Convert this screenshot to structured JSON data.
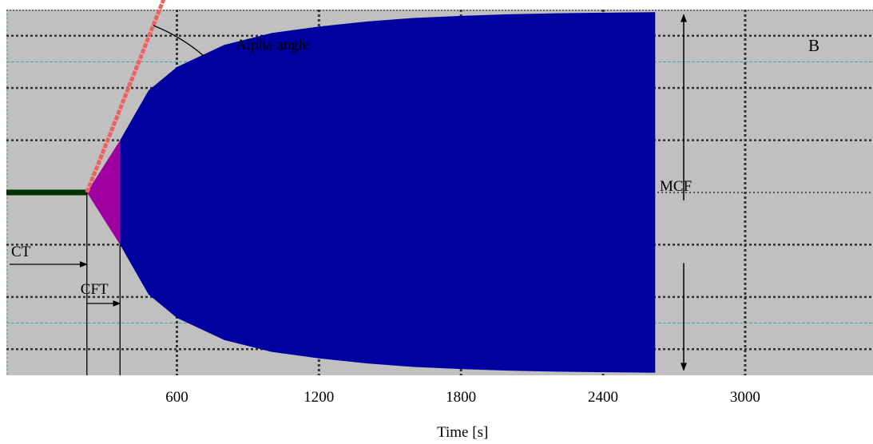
{
  "chart_data": {
    "type": "area",
    "panel_label": "B",
    "xlabel": "Time [s]",
    "ylabel": "",
    "xlim": [
      -120,
      3540
    ],
    "ylim": [
      -70,
      70
    ],
    "x_ticks": [
      600,
      1200,
      1800,
      2400,
      3000
    ],
    "x_tick_labels": [
      "600",
      "1200",
      "1800",
      "2400",
      "3000"
    ],
    "grid": true,
    "colors": {
      "background": "#c0c0c0",
      "grid": "#333333",
      "reference_line": "#4aa8a8",
      "trace": "#0000a0",
      "initial_clot": "#a000a0",
      "baseline": "#003300",
      "alpha_line": "#f06060"
    },
    "events": {
      "CT": 220,
      "CFT_end": 360,
      "trace_end": 2620
    },
    "reference_amplitude": 50,
    "envelope": {
      "x": [
        220,
        360,
        480,
        600,
        800,
        1000,
        1200,
        1400,
        1600,
        1800,
        2000,
        2200,
        2400,
        2620
      ],
      "amplitude": [
        0,
        20,
        39,
        48,
        56.5,
        61,
        63.5,
        65.4,
        66.8,
        67.6,
        68.2,
        68.6,
        68.8,
        69
      ]
    },
    "alpha_line": {
      "x": [
        220,
        720
      ],
      "y": [
        0,
        114
      ]
    },
    "annotations": {
      "alpha_angle": "Alpha angle",
      "mcf": "MCF",
      "ct": "CT",
      "cft": "CFT"
    }
  }
}
